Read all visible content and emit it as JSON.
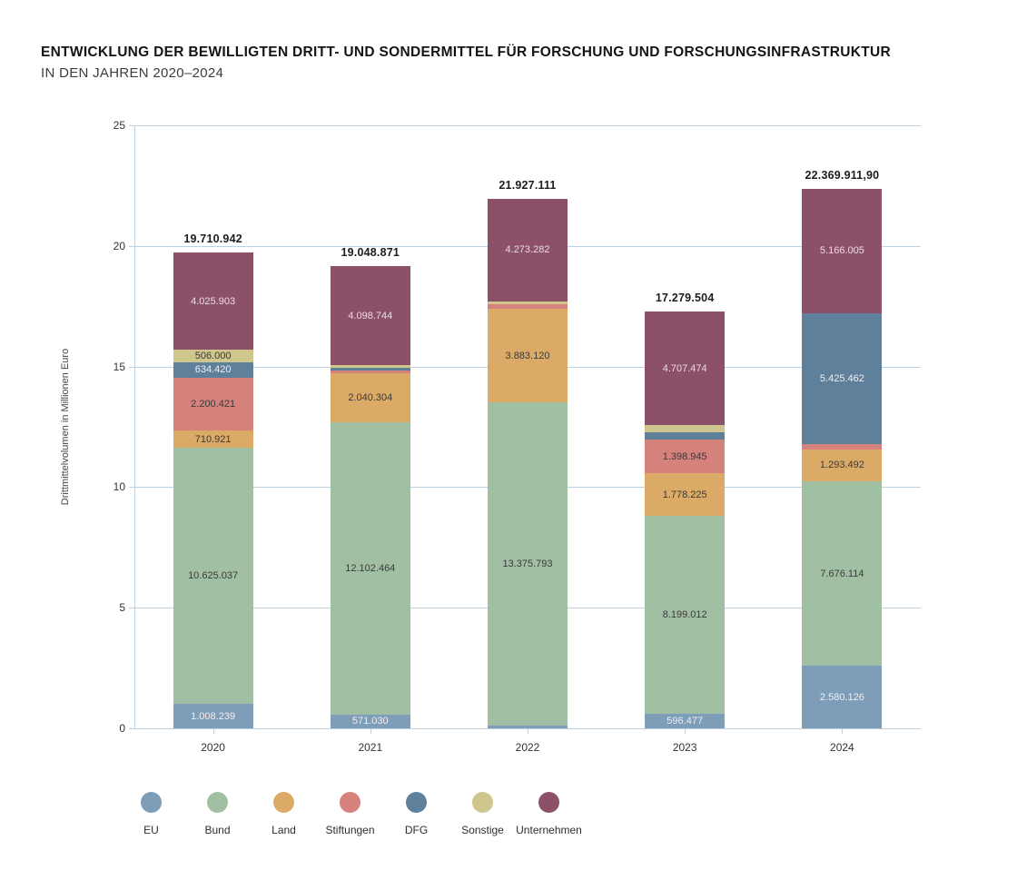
{
  "header": {
    "title": "ENTWICKLUNG DER BEWILLIGTEN DRITT- UND SONDERMITTEL FÜR FORSCHUNG UND FORSCHUNGSINFRASTRUKTUR",
    "subtitle": "IN DEN JAHREN 2020–2024"
  },
  "chart_data": {
    "type": "bar",
    "stacked": true,
    "title": "Entwicklung der bewilligten Dritt- und Sondermittel für Forschung und Forschungsinfrastruktur in den Jahren 2020–2024",
    "xlabel": "",
    "ylabel": "Drittmittelvolumen in Millionen Euro",
    "ylim": [
      0,
      25
    ],
    "yticks": [
      "0",
      "5",
      "10",
      "15",
      "20",
      "25"
    ],
    "grid": true,
    "legend_position": "bottom",
    "value_scale_per_axis_unit": 1000000,
    "categories": [
      "2020",
      "2021",
      "2022",
      "2023",
      "2024"
    ],
    "totals": [
      "19.710.942",
      "19.048.871",
      "21.927.111",
      "17.279.504",
      "22.369.911,90"
    ],
    "series": [
      {
        "name": "EU",
        "color": "#7E9DB8",
        "label_color": "#f2eef0",
        "values": [
          1008239,
          571030,
          130000,
          596477,
          2580126
        ],
        "labels": [
          "1.008.239",
          "571.030",
          "",
          "596.477",
          "2.580.126"
        ]
      },
      {
        "name": "Bund",
        "color": "#A1BFA3",
        "label_color": "#3a3a3a",
        "values": [
          10625037,
          12102464,
          13375793,
          8199012,
          7676114
        ],
        "labels": [
          "10.625.037",
          "12.102.464",
          "13.375.793",
          "8.199.012",
          "7.676.114"
        ]
      },
      {
        "name": "Land",
        "color": "#DBAA66",
        "label_color": "#3a3a3a",
        "values": [
          710921,
          2040304,
          3883120,
          1778225,
          1293492
        ],
        "labels": [
          "710.921",
          "2.040.304",
          "3.883.120",
          "1.778.225",
          "1.293.492"
        ]
      },
      {
        "name": "Stiftungen",
        "color": "#D5817C",
        "label_color": "#3a3a3a",
        "values": [
          2200421,
          90000,
          190000,
          1398945,
          228713
        ],
        "labels": [
          "2.200.421",
          "",
          "",
          "1.398.945",
          ""
        ]
      },
      {
        "name": "DFG",
        "color": "#5E809B",
        "label_color": "#f2eef0",
        "values": [
          634420,
          75000,
          0,
          299371,
          5425462
        ],
        "labels": [
          "634.420",
          "",
          "",
          "",
          "5.425.462"
        ]
      },
      {
        "name": "Sonstige",
        "color": "#CEC68C",
        "label_color": "#3a3a3a",
        "values": [
          506000,
          71329,
          74916,
          300000,
          0
        ],
        "labels": [
          "506.000",
          "",
          "",
          "",
          ""
        ]
      },
      {
        "name": "Unternehmen",
        "color": "#8C5168",
        "label_color": "#ecdbe2",
        "values": [
          4025903,
          4098744,
          4273282,
          4707474,
          5166005
        ],
        "labels": [
          "4.025.903",
          "4.098.744",
          "4.273.282",
          "4.707.474",
          "5.166.005"
        ]
      }
    ]
  }
}
